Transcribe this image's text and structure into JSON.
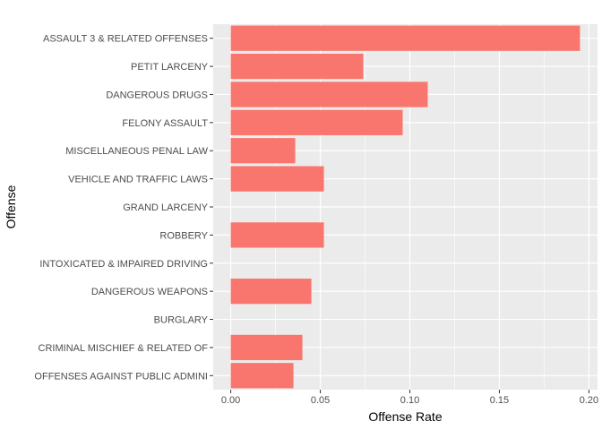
{
  "chart_data": {
    "type": "bar",
    "orientation": "horizontal",
    "categories": [
      "ASSAULT 3 & RELATED OFFENSES",
      "PETIT LARCENY",
      "DANGEROUS DRUGS",
      "FELONY ASSAULT",
      "MISCELLANEOUS PENAL LAW",
      "VEHICLE AND TRAFFIC LAWS",
      "GRAND LARCENY",
      "ROBBERY",
      "INTOXICATED & IMPAIRED DRIVING",
      "DANGEROUS WEAPONS",
      "BURGLARY",
      "CRIMINAL MISCHIEF & RELATED OF",
      "OFFENSES AGAINST PUBLIC ADMINI"
    ],
    "values": [
      0.195,
      0.074,
      0.11,
      0.096,
      0.036,
      0.052,
      0.0,
      0.052,
      0.0,
      0.045,
      0.0,
      0.04,
      0.035
    ],
    "xlabel": "Offense Rate",
    "ylabel": "Offense",
    "xlim": [
      -0.0098,
      0.2048
    ],
    "xticks": [
      0.0,
      0.05,
      0.1,
      0.15,
      0.2
    ],
    "xtick_labels": [
      "0.00",
      "0.05",
      "0.10",
      "0.15",
      "0.20"
    ],
    "bar_color": "#F8766D",
    "panel_background": "#EBEBEB",
    "grid_color": "#FFFFFF",
    "grid": true,
    "legend": "none"
  }
}
